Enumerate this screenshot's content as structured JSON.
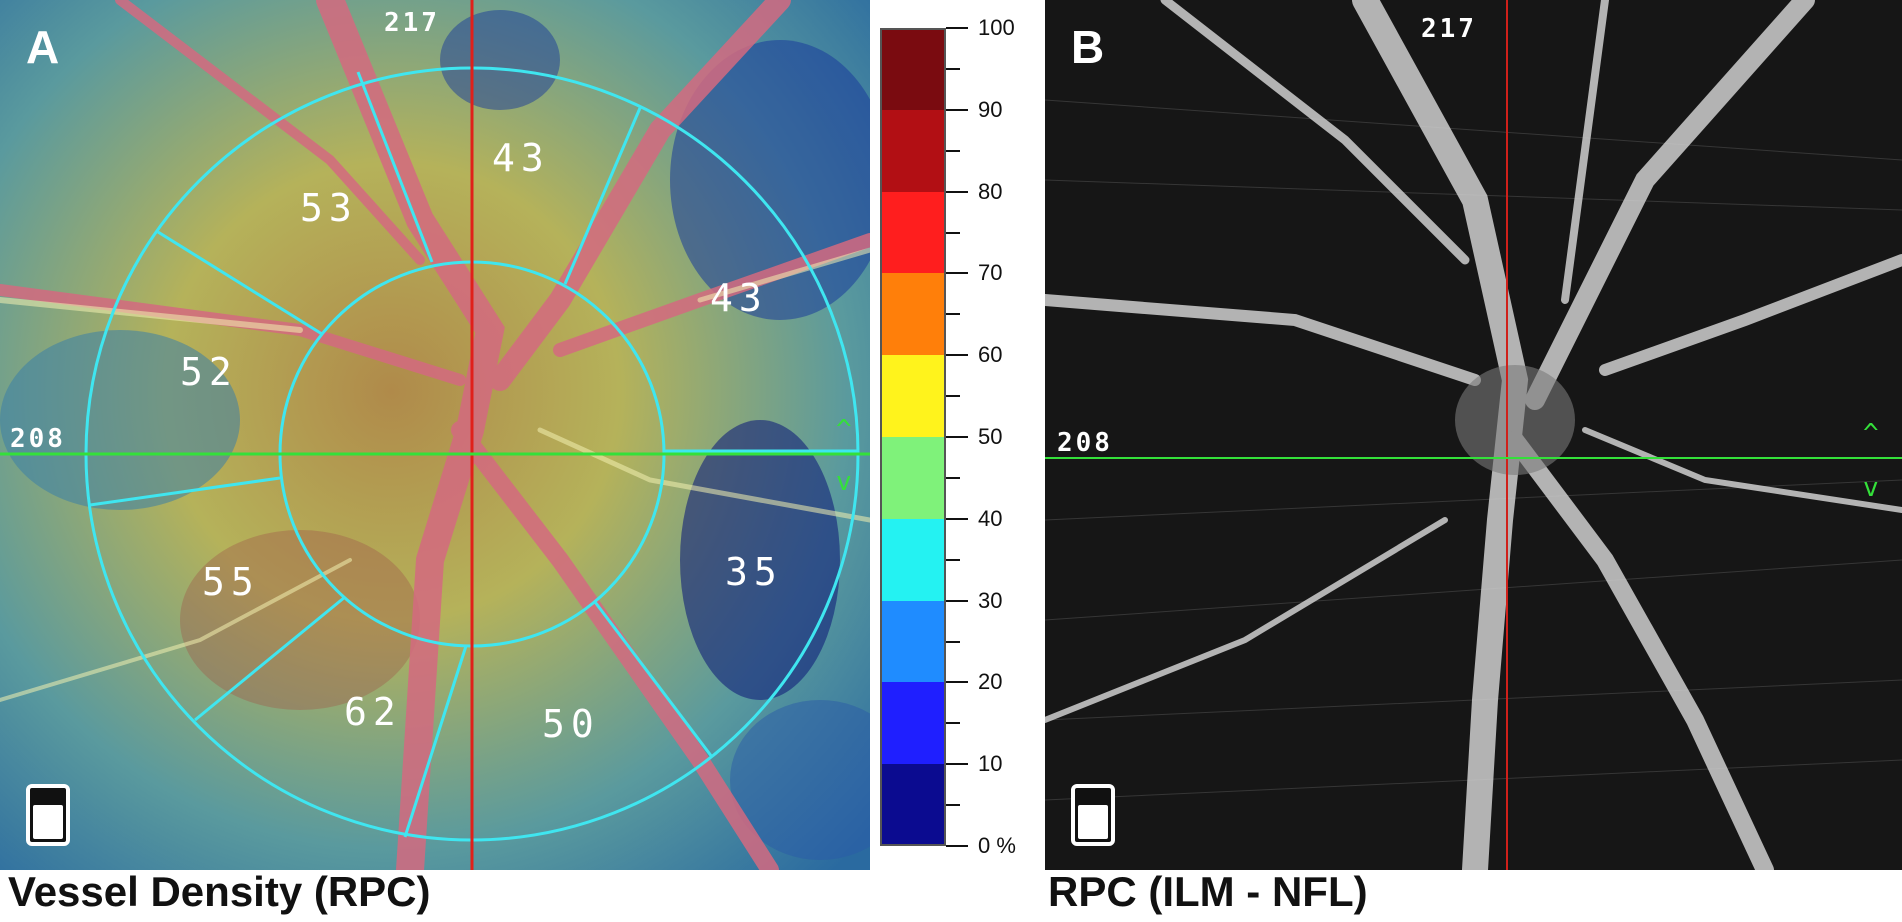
{
  "panel_a": {
    "letter": "A",
    "top_marker": "217",
    "left_marker": "208",
    "sectors": {
      "superior_nasal": "43",
      "superior_temporal": "53",
      "nasal_superior": "43",
      "temporal_superior": "52",
      "nasal_inferior": "35",
      "temporal_inferior": "55",
      "inferior_temporal": "62",
      "inferior_nasal": "50"
    },
    "caption": "Vessel Density (RPC)"
  },
  "color_scale": {
    "labels": [
      "100",
      "90",
      "80",
      "70",
      "60",
      "50",
      "40",
      "30",
      "20",
      "10",
      "0 %"
    ],
    "colors": [
      "#7a0b10",
      "#b20f14",
      "#ff1e1e",
      "#ff7f0a",
      "#fff31c",
      "#7ff27a",
      "#24f2f2",
      "#1f8cff",
      "#1f1fff",
      "#0b0b90"
    ]
  },
  "panel_b": {
    "letter": "B",
    "top_marker": "217",
    "left_marker": "208",
    "caption": "RPC (ILM - NFL)"
  }
}
